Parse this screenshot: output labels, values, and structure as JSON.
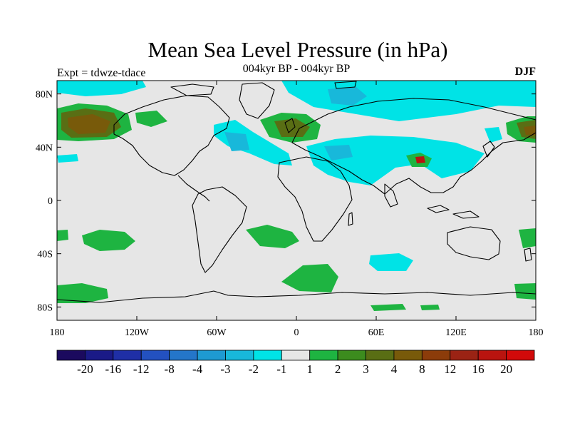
{
  "title": "Mean Sea Level Pressure (in hPa)",
  "subtitle": "004kyr BP - 004kyr BP",
  "experiment": "Expt = tdwze-tdace",
  "season": "DJF",
  "lat_labels": [
    "80N",
    "40N",
    "0",
    "40S",
    "80S"
  ],
  "lon_labels": [
    "180",
    "120W",
    "60W",
    "0",
    "60E",
    "120E",
    "180"
  ],
  "colorbar": {
    "colors": [
      "#1b0a5e",
      "#1a1a87",
      "#1f2fa6",
      "#2351c0",
      "#2476c9",
      "#1e9ad2",
      "#18b8da",
      "#00e3e6",
      "#e6e6e6",
      "#1eb441",
      "#3c8c1e",
      "#596e14",
      "#785a0a",
      "#8c3c0a",
      "#9b2314",
      "#b9140f",
      "#d20a0a"
    ],
    "labels": [
      "-20",
      "-16",
      "-12",
      "-8",
      "-4",
      "-3",
      "-2",
      "-1",
      "1",
      "2",
      "3",
      "4",
      "8",
      "12",
      "16",
      "20"
    ]
  },
  "fill_colors": {
    "background": "#e6e6e6",
    "cyan": "#00e3e6",
    "blue": "#18b8da",
    "green": "#1eb441",
    "dark_green": "#596e14",
    "brown": "#785a0a",
    "red": "#b9140f"
  }
}
